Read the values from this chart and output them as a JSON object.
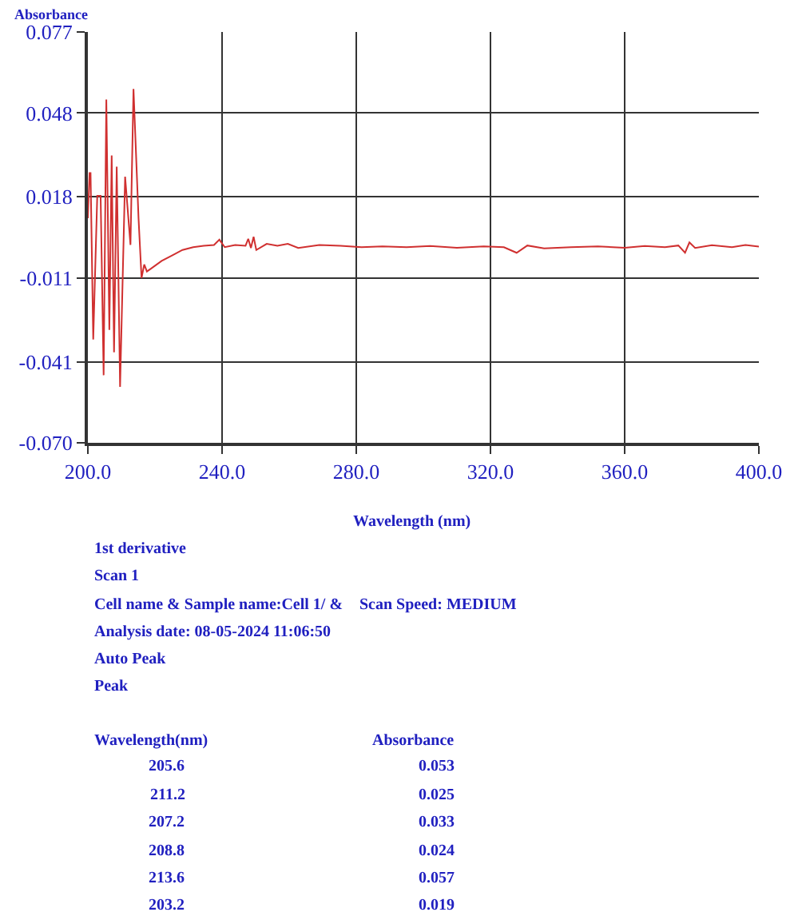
{
  "chart_data": {
    "type": "line",
    "ylabel": "Absorbance",
    "xlabel": "Wavelength (nm)",
    "x": [
      200,
      200.5,
      200.8,
      201.6,
      202.8,
      203.8,
      204.7,
      205.5,
      206.4,
      207.1,
      207.8,
      208.6,
      209.6,
      211.1,
      212.7,
      213.6,
      215.1,
      216,
      216.8,
      217.6,
      218.8,
      222,
      225.1,
      228.2,
      231.4,
      234.5,
      237.6,
      239.2,
      240.8,
      243.9,
      247,
      247.8,
      248.6,
      249.4,
      250.2,
      253.3,
      256.5,
      259.6,
      262.7,
      269,
      275.3,
      281.6,
      287.8,
      295,
      302,
      310,
      318,
      324,
      327.8,
      331,
      336,
      344,
      352,
      360,
      366,
      372,
      376,
      378,
      379.3,
      381,
      386,
      392,
      396,
      400
    ],
    "series": [
      {
        "color": "#d03030",
        "values": [
          0.0104,
          0.0265,
          0.0265,
          -0.033,
          0.0184,
          0.0184,
          -0.0458,
          0.0528,
          -0.0296,
          0.0328,
          -0.0376,
          0.0288,
          -0.05,
          0.0252,
          0.0008,
          0.0566,
          0.0104,
          -0.011,
          -0.0062,
          -0.0087,
          -0.0077,
          -0.0049,
          -0.003,
          -0.001,
          0.0,
          0.0005,
          0.0008,
          0.0027,
          0.0,
          0.0008,
          0.0005,
          0.003,
          -0.0003,
          0.0037,
          -0.001,
          0.0012,
          0.0005,
          0.0012,
          -0.0003,
          0.0008,
          0.0005,
          0.0,
          0.0003,
          0.0,
          0.0004,
          -0.0002,
          0.0003,
          0.0,
          -0.002,
          0.0006,
          -0.0004,
          0.0,
          0.0003,
          -0.0002,
          0.0004,
          0.0,
          0.0006,
          -0.002,
          0.0017,
          -0.0003,
          0.0007,
          0.0,
          0.0008,
          0.0002
        ]
      }
    ],
    "xlim": [
      200,
      400
    ],
    "xticks": [
      {
        "value": 200,
        "label": "200.0"
      },
      {
        "value": 240,
        "label": "240.0"
      },
      {
        "value": 280,
        "label": "280.0"
      },
      {
        "value": 320,
        "label": "320.0"
      },
      {
        "value": 360,
        "label": "360.0"
      },
      {
        "value": 400,
        "label": "400.0"
      }
    ],
    "ylim": [
      -0.07,
      0.077
    ],
    "yticks": [
      {
        "value": -0.07,
        "label": "-0.070"
      },
      -0.041,
      -0.011,
      0.018,
      0.048,
      0.077
    ],
    "grid": true,
    "legend": false,
    "marker": "none",
    "line_style": "solid",
    "annotations": [
      "1st derivative",
      "Scan 1",
      "Cell name & Sample name:Cell 1/ &",
      "Scan Speed: MEDIUM",
      "Analysis date: 08-05-2024 11:06:50",
      "Auto Peak",
      "Peak",
      "Wavelength(nm)",
      "Absorbance",
      "205.6",
      "0.053",
      "211.2",
      "0.025",
      "207.2",
      "0.033",
      "208.8",
      "0.024",
      "213.6",
      "0.057",
      "203.2",
      "0.019"
    ]
  }
}
